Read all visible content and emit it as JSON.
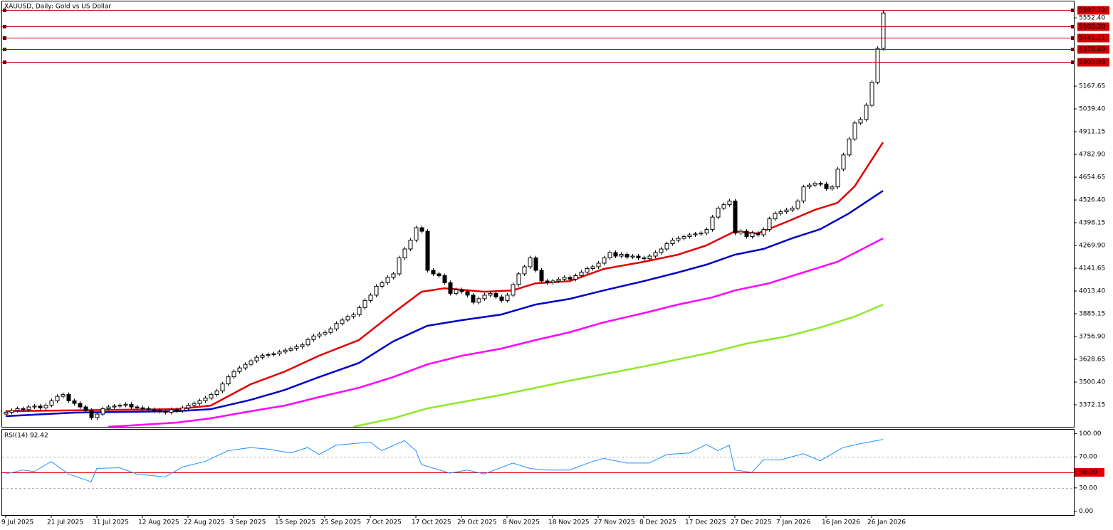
{
  "chart_data": [
    {
      "type": "candlestick",
      "title": "XAUUSD, Daily:  Gold vs US Dollar",
      "xlim": [
        -0.625,
        187.5
      ],
      "ylim": [
        3248,
        5645
      ],
      "yticks": [
        {
          "value": 5552.4,
          "label": "5552.40"
        },
        5167.65,
        {
          "value": 5039.4,
          "label": "5039.40"
        },
        4911.15,
        {
          "value": 4782.9,
          "label": "4782.90"
        },
        4654.65,
        {
          "value": 4526.4,
          "label": "4526.40"
        },
        4398.15,
        {
          "value": 4269.9,
          "label": "4269.90"
        },
        4141.65,
        {
          "value": 4013.4,
          "label": "4013.40"
        },
        3885.15,
        {
          "value": 3756.9,
          "label": "3756.90"
        },
        3628.65,
        {
          "value": 3500.4,
          "label": "3500.40"
        },
        3372.15
      ],
      "hlines": [
        5597.12,
        {
          "value": 5503.2,
          "label": "5503.20"
        },
        5441.71,
        {
          "value": 5376.4,
          "label": "5376.40"
        },
        5303.93
      ],
      "hline_color": "#d00000",
      "up_color": "#ffffff",
      "down_color": "#000000",
      "open": [
        3320,
        3330,
        3340,
        3350,
        3345,
        3360,
        3365,
        3355,
        3370,
        3395,
        3420,
        3430,
        3395,
        3380,
        3360,
        3340,
        3300,
        3320,
        3350,
        3360,
        3365,
        3370,
        3375,
        3360,
        3355,
        3350,
        3345,
        3340,
        3335,
        3330,
        3345,
        3340,
        3355,
        3370,
        3380,
        3395,
        3410,
        3430,
        3450,
        3490,
        3530,
        3560,
        3580,
        3600,
        3620,
        3640,
        3650,
        3655,
        3660,
        3670,
        3680,
        3690,
        3700,
        3710,
        3740,
        3760,
        3770,
        3780,
        3800,
        3830,
        3850,
        3870,
        3880,
        3920,
        3960,
        3990,
        4040,
        4060,
        4090,
        4110,
        4200,
        4250,
        4300,
        4370,
        4350,
        4130,
        4110,
        4100,
        4060,
        4000,
        4020,
        4010,
        3990,
        3950,
        3970,
        3990,
        4000,
        3980,
        3960,
        3990,
        4050,
        4110,
        4150,
        4200,
        4130,
        4070,
        4060,
        4070,
        4080,
        4090,
        4080,
        4100,
        4120,
        4140,
        4150,
        4170,
        4200,
        4230,
        4210,
        4220,
        4205,
        4210,
        4200,
        4195,
        4210,
        4230,
        4250,
        4280,
        4300,
        4310,
        4320,
        4330,
        4335,
        4340,
        4360,
        4430,
        4480,
        4500,
        4520,
        4340,
        4350,
        4320,
        4340,
        4330,
        4360,
        4420,
        4450,
        4460,
        4470,
        4480,
        4520,
        4600,
        4610,
        4620,
        4615,
        4590,
        4600,
        4700,
        4780,
        4870,
        4960,
        4980,
        5060,
        5190,
        5380
      ],
      "high": [
        3342,
        3352,
        3362,
        3362,
        3372,
        3377,
        3377,
        3382,
        3407,
        3432,
        3442,
        3442,
        3407,
        3392,
        3372,
        3352,
        3332,
        3362,
        3372,
        3377,
        3382,
        3387,
        3387,
        3372,
        3367,
        3362,
        3357,
        3352,
        3347,
        3357,
        3357,
        3367,
        3382,
        3392,
        3407,
        3422,
        3442,
        3462,
        3502,
        3542,
        3572,
        3592,
        3612,
        3632,
        3652,
        3662,
        3667,
        3672,
        3682,
        3692,
        3702,
        3712,
        3722,
        3752,
        3772,
        3782,
        3792,
        3812,
        3842,
        3862,
        3882,
        3892,
        3932,
        3972,
        4002,
        4052,
        4072,
        4102,
        4122,
        4212,
        4262,
        4312,
        4382,
        4382,
        4362,
        4142,
        4122,
        4112,
        4072,
        4032,
        4032,
        4022,
        4002,
        3982,
        4002,
        4012,
        4012,
        3992,
        4002,
        4062,
        4122,
        4162,
        4212,
        4212,
        4142,
        4082,
        4082,
        4092,
        4102,
        4102,
        4112,
        4132,
        4152,
        4162,
        4182,
        4212,
        4242,
        4242,
        4232,
        4232,
        4222,
        4222,
        4212,
        4222,
        4242,
        4262,
        4292,
        4312,
        4322,
        4332,
        4342,
        4347,
        4352,
        4372,
        4442,
        4492,
        4512,
        4532,
        4532,
        4362,
        4362,
        4352,
        4352,
        4372,
        4432,
        4462,
        4472,
        4482,
        4492,
        4532,
        4612,
        4622,
        4632,
        4632,
        4627,
        4612,
        4712,
        4792,
        4882,
        4972,
        4992,
        5072,
        5202,
        5392,
        5597
      ],
      "low": [
        3308,
        3318,
        3328,
        3333,
        3333,
        3348,
        3343,
        3343,
        3358,
        3383,
        3408,
        3383,
        3368,
        3348,
        3328,
        3288,
        3288,
        3308,
        3338,
        3348,
        3353,
        3358,
        3348,
        3343,
        3338,
        3333,
        3328,
        3323,
        3318,
        3318,
        3328,
        3328,
        3343,
        3358,
        3368,
        3383,
        3398,
        3418,
        3438,
        3478,
        3518,
        3548,
        3568,
        3588,
        3608,
        3628,
        3638,
        3643,
        3648,
        3658,
        3668,
        3678,
        3688,
        3698,
        3728,
        3748,
        3758,
        3768,
        3788,
        3818,
        3838,
        3858,
        3868,
        3908,
        3948,
        3978,
        4028,
        4048,
        4078,
        4098,
        4188,
        4238,
        4288,
        4338,
        4118,
        4098,
        4088,
        4048,
        3988,
        3988,
        3998,
        3978,
        3938,
        3938,
        3958,
        3978,
        3968,
        3948,
        3948,
        3978,
        4038,
        4098,
        4138,
        4118,
        4058,
        4048,
        4048,
        4058,
        4068,
        4068,
        4068,
        4088,
        4108,
        4128,
        4138,
        4158,
        4188,
        4198,
        4198,
        4193,
        4193,
        4188,
        4183,
        4183,
        4198,
        4218,
        4238,
        4268,
        4288,
        4298,
        4308,
        4318,
        4323,
        4328,
        4348,
        4418,
        4468,
        4488,
        4328,
        4328,
        4308,
        4308,
        4318,
        4318,
        4348,
        4408,
        4438,
        4448,
        4458,
        4468,
        4508,
        4588,
        4598,
        4603,
        4578,
        4578,
        4588,
        4688,
        4768,
        4858,
        4948,
        4968,
        5048,
        5178,
        5368
      ],
      "close": [
        3330,
        3340,
        3350,
        3345,
        3360,
        3365,
        3355,
        3370,
        3395,
        3420,
        3430,
        3395,
        3380,
        3360,
        3340,
        3300,
        3320,
        3350,
        3360,
        3365,
        3370,
        3375,
        3360,
        3355,
        3350,
        3345,
        3340,
        3335,
        3330,
        3345,
        3340,
        3355,
        3370,
        3380,
        3395,
        3410,
        3430,
        3450,
        3490,
        3530,
        3560,
        3580,
        3600,
        3620,
        3640,
        3650,
        3655,
        3660,
        3670,
        3680,
        3690,
        3700,
        3710,
        3740,
        3760,
        3770,
        3780,
        3800,
        3830,
        3850,
        3870,
        3880,
        3920,
        3960,
        3990,
        4040,
        4060,
        4090,
        4110,
        4200,
        4250,
        4300,
        4370,
        4350,
        4130,
        4110,
        4100,
        4060,
        4000,
        4020,
        4010,
        3990,
        3950,
        3970,
        3990,
        4000,
        3980,
        3960,
        3990,
        4050,
        4110,
        4150,
        4200,
        4130,
        4070,
        4060,
        4070,
        4080,
        4090,
        4080,
        4100,
        4120,
        4140,
        4150,
        4170,
        4200,
        4230,
        4210,
        4220,
        4205,
        4210,
        4200,
        4195,
        4210,
        4230,
        4250,
        4280,
        4300,
        4310,
        4320,
        4330,
        4335,
        4340,
        4360,
        4430,
        4480,
        4500,
        4520,
        4340,
        4350,
        4320,
        4340,
        4330,
        4360,
        4420,
        4450,
        4460,
        4470,
        4480,
        4520,
        4600,
        4610,
        4620,
        4615,
        4590,
        4600,
        4700,
        4780,
        4870,
        4960,
        4980,
        5060,
        5190,
        5380,
        5580
      ],
      "series": [
        {
          "color": "#e00000",
          "x": [
            0,
            30,
            36,
            43,
            49,
            55,
            62,
            68,
            73,
            77,
            84,
            89,
            93,
            99,
            105,
            112,
            118,
            123,
            128,
            132,
            137,
            142,
            146,
            149,
            154
          ],
          "values": [
            3336,
            3348,
            3368,
            3488,
            3560,
            3649,
            3737,
            3889,
            4009,
            4029,
            4009,
            4017,
            4057,
            4069,
            4138,
            4178,
            4218,
            4270,
            4350,
            4338,
            4402,
            4470,
            4510,
            4602,
            4851
          ]
        },
        {
          "color": "#0000c8",
          "x": [
            0,
            12,
            30,
            36,
            43,
            49,
            55,
            62,
            68,
            74,
            80,
            87,
            93,
            99,
            105,
            112,
            118,
            123,
            128,
            133,
            138,
            143,
            148,
            154
          ],
          "values": [
            3308,
            3328,
            3336,
            3348,
            3400,
            3456,
            3528,
            3608,
            3729,
            3817,
            3849,
            3881,
            3937,
            3969,
            4017,
            4069,
            4118,
            4162,
            4218,
            4250,
            4310,
            4362,
            4450,
            4578
          ]
        },
        {
          "color": "#ff00ff",
          "x": [
            18,
            30,
            36,
            43,
            49,
            55,
            62,
            68,
            74,
            80,
            87,
            93,
            99,
            105,
            112,
            118,
            124,
            128,
            134,
            140,
            146,
            154
          ],
          "values": [
            3248,
            3272,
            3296,
            3336,
            3368,
            3416,
            3468,
            3528,
            3600,
            3648,
            3689,
            3737,
            3781,
            3837,
            3889,
            3937,
            3977,
            4017,
            4057,
            4118,
            4178,
            4310
          ]
        },
        {
          "color": "#8ee82a",
          "x": [
            61,
            68,
            74,
            87,
            99,
            112,
            124,
            130,
            137,
            143,
            149,
            154
          ],
          "values": [
            3248,
            3296,
            3352,
            3428,
            3508,
            3588,
            3668,
            3717,
            3757,
            3808,
            3869,
            3937
          ]
        }
      ]
    },
    {
      "type": "line",
      "title": "RSI(14) 92.42",
      "xlim": [
        -0.625,
        187.5
      ],
      "ylim": [
        -5,
        105
      ],
      "yticks": [
        {
          "value": 100,
          "label": "100.00"
        },
        {
          "value": 70,
          "label": "70.00"
        },
        {
          "value": 50,
          "label": "50.00"
        },
        {
          "value": 30,
          "label": "30.00"
        },
        {
          "value": 0,
          "label": "0.00"
        }
      ],
      "levels": [
        {
          "value": 70,
          "color": "#b0b0b0",
          "dashed": true
        },
        {
          "value": 50,
          "color": "#e00000",
          "dashed": false,
          "label_box": true
        },
        {
          "value": 30,
          "color": "#b0b0b0",
          "dashed": true
        }
      ],
      "xticks": [
        {
          "value": 0,
          "label": "9 Jul 2025"
        },
        {
          "value": 8,
          "label": "21 Jul 2025"
        },
        {
          "value": 16,
          "label": "31 Jul 2025"
        },
        {
          "value": 24,
          "label": "12 Aug 2025"
        },
        {
          "value": 32,
          "label": "22 Aug 2025"
        },
        {
          "value": 40,
          "label": "3 Sep 2025"
        },
        {
          "value": 48,
          "label": "15 Sep 2025"
        },
        {
          "value": 56,
          "label": "25 Sep 2025"
        },
        {
          "value": 64,
          "label": "7 Oct 2025"
        },
        {
          "value": 72,
          "label": "17 Oct 2025"
        },
        {
          "value": 80,
          "label": "29 Oct 2025"
        },
        {
          "value": 88,
          "label": "8 Nov 2025"
        },
        {
          "value": 96,
          "label": "18 Nov 2025"
        },
        {
          "value": 104,
          "label": "27 Nov 2025"
        },
        {
          "value": 112,
          "label": "8 Dec 2025"
        },
        {
          "value": 120,
          "label": "17 Dec 2025"
        },
        {
          "value": 128,
          "label": "27 Dec 2025"
        },
        {
          "value": 136,
          "label": "7 Jan 2026"
        },
        {
          "value": 144,
          "label": "16 Jan 2026"
        },
        {
          "value": 152,
          "label": "26 Jan 2026"
        }
      ],
      "series": [
        {
          "color": "#1e90ff",
          "x": [
            0,
            3,
            5,
            8,
            11,
            15,
            16,
            20,
            23,
            28,
            31,
            35,
            39,
            43,
            46,
            50,
            53,
            55,
            58,
            64,
            66,
            70,
            72,
            73,
            78,
            81,
            84,
            89,
            92,
            95,
            99,
            103,
            105,
            109,
            113,
            116,
            120,
            123,
            125,
            127,
            128,
            131,
            133,
            136,
            140,
            143,
            147,
            150,
            154
          ],
          "values": [
            48,
            53,
            51,
            64,
            48,
            38,
            55,
            56,
            48,
            44,
            57,
            64,
            78,
            82,
            80,
            75,
            82,
            73,
            85,
            89,
            78,
            91,
            78,
            60,
            49,
            53,
            48,
            62,
            55,
            53,
            53,
            64,
            68,
            62,
            62,
            73,
            75,
            86,
            78,
            85,
            53,
            50,
            66,
            66,
            74,
            65,
            82,
            87,
            92.42
          ]
        }
      ]
    }
  ]
}
